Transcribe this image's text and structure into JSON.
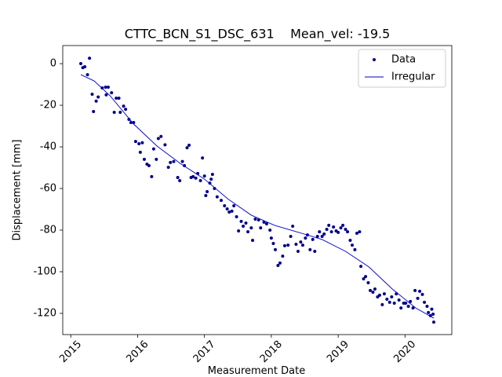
{
  "chart_data": {
    "type": "scatter",
    "title": "CTTC_BCN_S1_DSC_631    Mean_vel: -19.5",
    "x_label": "Measurement Date",
    "y_label": "Displacement [mm]",
    "xlim": [
      2014.88,
      2020.7
    ],
    "xticks": [
      2015,
      2016,
      2017,
      2018,
      2019,
      2020
    ],
    "ylim": [
      -130.2,
      8.7
    ],
    "yticks": [
      0,
      -20,
      -40,
      -60,
      -80,
      -100,
      -120
    ],
    "legend": "upper right",
    "grid": false,
    "series": [
      {
        "name": "Data",
        "type": "scatter",
        "color": "#00008b",
        "x": [
          2015.15,
          2015.18,
          2015.21,
          2015.25,
          2015.28,
          2015.32,
          2015.34,
          2015.38,
          2015.41,
          2015.47,
          2015.52,
          2015.56,
          2015.53,
          2015.61,
          2015.65,
          2015.68,
          2015.72,
          2015.74,
          2015.79,
          2015.82,
          2015.87,
          2015.9,
          2015.94,
          2015.97,
          2016.02,
          2016.04,
          2016.07,
          2016.1,
          2016.14,
          2016.17,
          2016.21,
          2016.24,
          2016.28,
          2016.31,
          2016.35,
          2016.41,
          2016.46,
          2016.49,
          2016.54,
          2016.6,
          2016.63,
          2016.67,
          2016.7,
          2016.74,
          2016.77,
          2016.8,
          2016.83,
          2016.87,
          2016.9,
          2016.94,
          2016.97,
          2017.0,
          2017.02,
          2017.04,
          2017.08,
          2017.1,
          2017.12,
          2017.15,
          2017.19,
          2017.25,
          2017.3,
          2017.34,
          2017.37,
          2017.41,
          2017.44,
          2017.48,
          2017.51,
          2017.55,
          2017.58,
          2017.62,
          2017.65,
          2017.7,
          2017.72,
          2017.76,
          2017.81,
          2017.84,
          2017.89,
          2017.93,
          2017.98,
          2018.0,
          2018.03,
          2018.06,
          2018.1,
          2018.13,
          2018.17,
          2018.2,
          2018.25,
          2018.29,
          2018.32,
          2018.37,
          2018.4,
          2018.44,
          2018.47,
          2018.51,
          2018.54,
          2018.58,
          2018.62,
          2018.65,
          2018.69,
          2018.72,
          2018.76,
          2018.79,
          2018.83,
          2018.86,
          2018.9,
          2018.93,
          2018.97,
          2019.0,
          2019.04,
          2019.07,
          2019.11,
          2019.14,
          2019.18,
          2019.21,
          2019.25,
          2019.28,
          2019.32,
          2019.34,
          2019.38,
          2019.41,
          2019.45,
          2019.48,
          2019.52,
          2019.55,
          2019.59,
          2019.62,
          2019.66,
          2019.69,
          2019.73,
          2019.77,
          2019.8,
          2019.84,
          2019.87,
          2019.91,
          2019.94,
          2019.98,
          2020.01,
          2020.05,
          2020.08,
          2020.12,
          2020.15,
          2020.19,
          2020.22,
          2020.26,
          2020.29,
          2020.33,
          2020.35,
          2020.38,
          2020.4,
          2020.42,
          2020.43
        ],
        "values": [
          0,
          -1.9,
          -1.5,
          -5.3,
          2.6,
          -14.7,
          -23,
          -18,
          -16,
          -11.7,
          -11.3,
          -11.3,
          -15,
          -14,
          -23.4,
          -16.6,
          -16.6,
          -23.4,
          -20.4,
          -21.9,
          -26.8,
          -28.3,
          -28.3,
          -37.4,
          -38.5,
          -42.6,
          -38,
          -46,
          -48.3,
          -49,
          -54.3,
          -41,
          -46,
          -36,
          -35,
          -39,
          -49.8,
          -47.5,
          -47,
          -54.7,
          -56.2,
          -47,
          -49,
          -40.4,
          -39.2,
          -54.7,
          -54.3,
          -55,
          -52.8,
          -56.2,
          -45.3,
          -54,
          -63.4,
          -61.5,
          -57.4,
          -55.5,
          -53.2,
          -60,
          -64,
          -65.7,
          -68.3,
          -69.8,
          -71.3,
          -70.9,
          -68.3,
          -73.6,
          -80.4,
          -75.8,
          -78.1,
          -76.6,
          -80.8,
          -78.9,
          -84.9,
          -74.7,
          -75.1,
          -78.9,
          -76.2,
          -77,
          -80,
          -83.8,
          -86.4,
          -89.4,
          -97,
          -95.8,
          -92.5,
          -87.5,
          -87.2,
          -83,
          -78.1,
          -86.8,
          -90.2,
          -85.7,
          -87.2,
          -83.8,
          -82.3,
          -89.4,
          -84.5,
          -90.2,
          -83,
          -80.8,
          -83,
          -81.9,
          -79.6,
          -77.7,
          -80.8,
          -78.5,
          -80.4,
          -81.1,
          -78.9,
          -77.7,
          -79.6,
          -80.8,
          -84.9,
          -87.2,
          -89.4,
          -81.5,
          -80.8,
          -97.4,
          -103.4,
          -102.3,
          -105.3,
          -109,
          -109.8,
          -108.3,
          -112.1,
          -111.3,
          -115.8,
          -110.6,
          -113.2,
          -114.7,
          -112.1,
          -115.1,
          -110.6,
          -113.6,
          -117.4,
          -115.1,
          -115.1,
          -116.6,
          -114.3,
          -117.4,
          -109,
          -112.8,
          -109.4,
          -110.9,
          -114.7,
          -116.6,
          -119.6,
          -121.1,
          -118,
          -120.4,
          -124.2
        ]
      },
      {
        "name": "Irregular",
        "type": "line",
        "color": "#0000cd",
        "x": [
          2015.15,
          2015.35,
          2015.59,
          2015.94,
          2016.29,
          2016.64,
          2017.0,
          2017.35,
          2017.7,
          2018.05,
          2018.4,
          2018.76,
          2019.11,
          2019.46,
          2019.81,
          2020.16,
          2020.43
        ],
        "values": [
          -5.3,
          -8.3,
          -15.5,
          -29,
          -39.6,
          -48,
          -55.5,
          -65,
          -72.8,
          -77.7,
          -81,
          -84.5,
          -90.2,
          -97.7,
          -108.3,
          -117.4,
          -122.3
        ]
      }
    ]
  }
}
